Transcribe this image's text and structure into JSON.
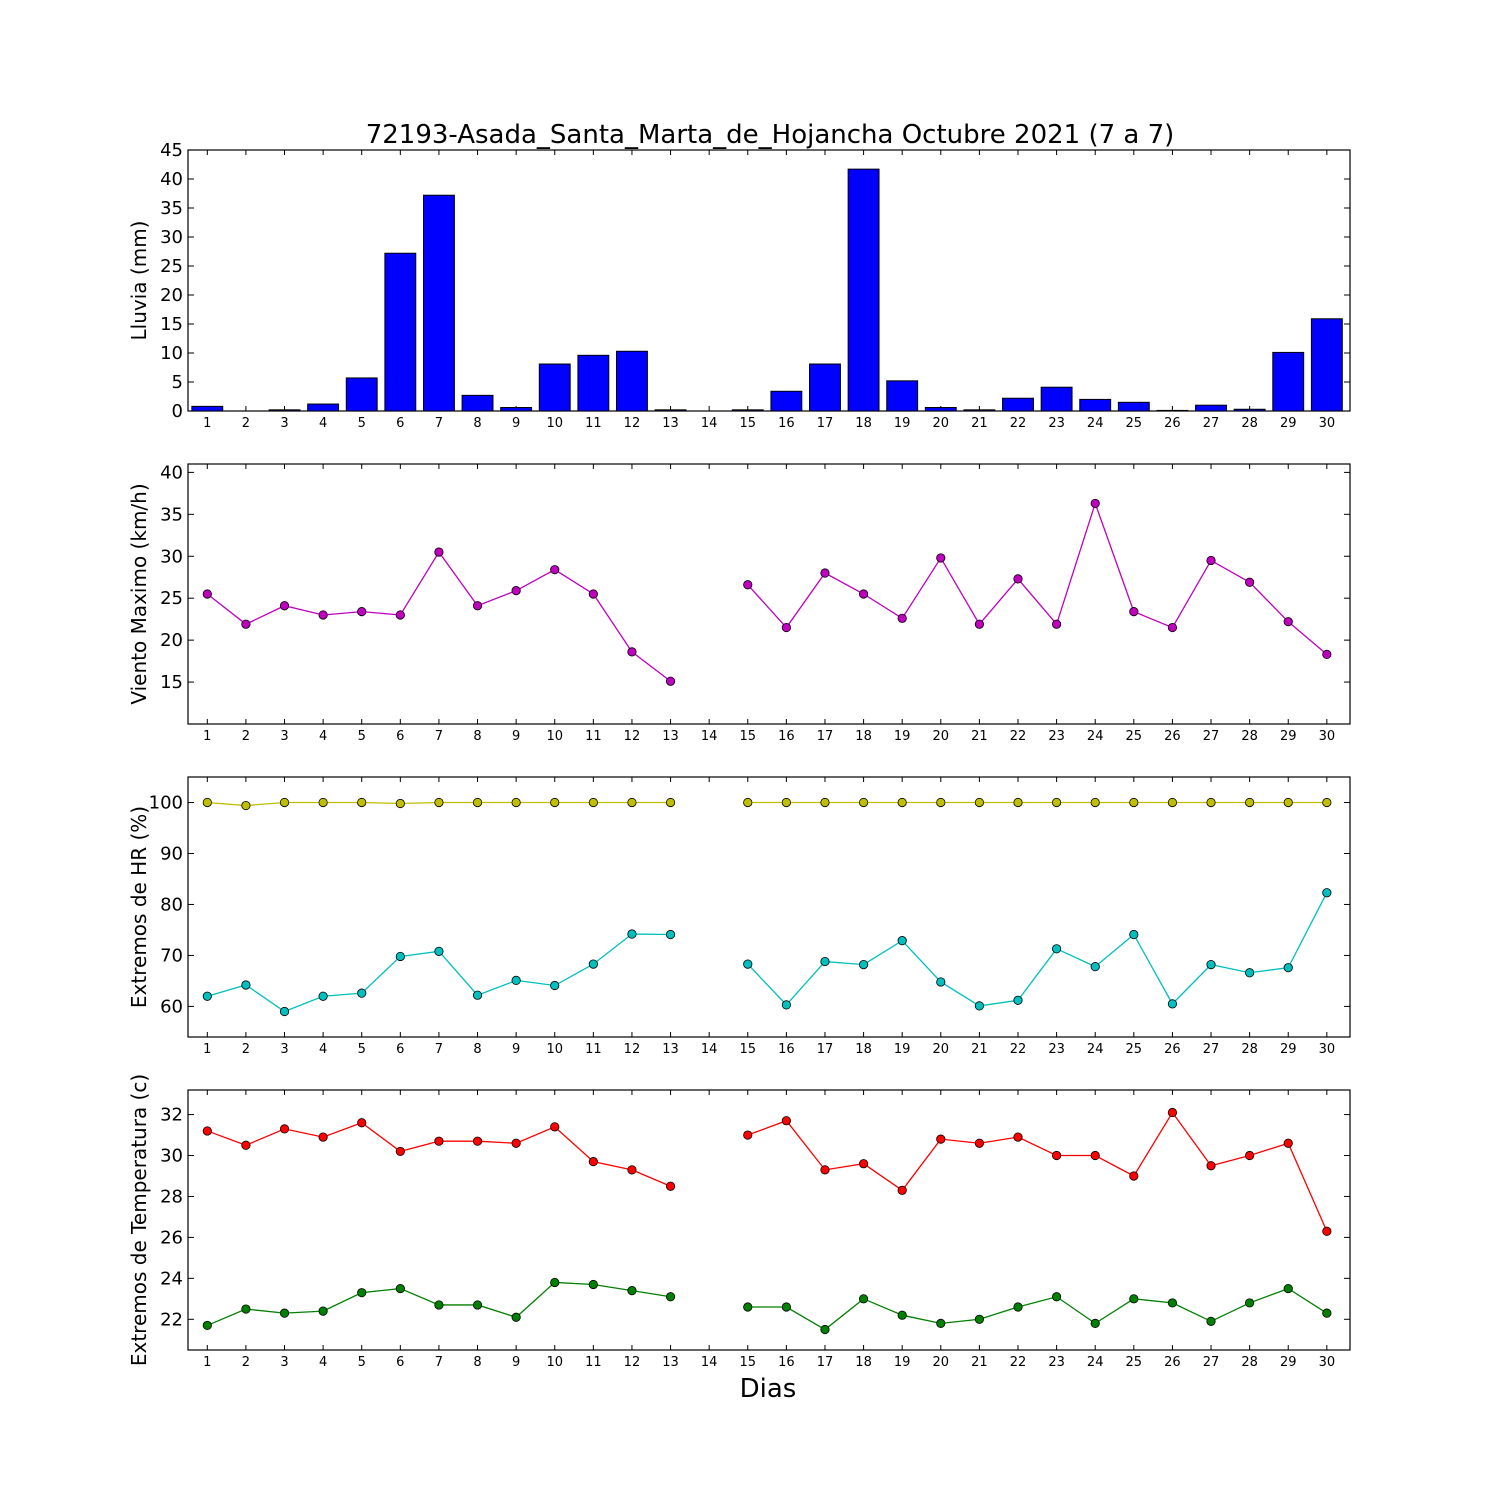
{
  "title": "72193-Asada_Santa_Marta_de_Hojancha Octubre 2021  (7 a 7)",
  "xlabel": "Dias",
  "days": [
    1,
    2,
    3,
    4,
    5,
    6,
    7,
    8,
    9,
    10,
    11,
    12,
    13,
    14,
    15,
    16,
    17,
    18,
    19,
    20,
    21,
    22,
    23,
    24,
    25,
    26,
    27,
    28,
    29,
    30
  ],
  "chart_data": [
    {
      "type": "bar",
      "ylabel": "Lluvia (mm)",
      "ylim": [
        0,
        45
      ],
      "yticks": [
        0,
        5,
        10,
        15,
        20,
        25,
        30,
        35,
        40,
        45
      ],
      "color": "#0000ff",
      "categories": [
        1,
        2,
        3,
        4,
        5,
        6,
        7,
        8,
        9,
        10,
        11,
        12,
        13,
        14,
        15,
        16,
        17,
        18,
        19,
        20,
        21,
        22,
        23,
        24,
        25,
        26,
        27,
        28,
        29,
        30
      ],
      "values": [
        0.8,
        0,
        0.2,
        1.2,
        5.7,
        27.2,
        37.2,
        2.7,
        0.6,
        8.1,
        9.6,
        10.3,
        0.2,
        0,
        0.2,
        3.4,
        8.1,
        41.7,
        5.2,
        0.6,
        0.2,
        2.2,
        4.1,
        2.0,
        1.5,
        0.1,
        1.0,
        0.3,
        10.1,
        15.9
      ]
    },
    {
      "type": "line",
      "ylabel": "Viento Maximo (km/h)",
      "ylim": [
        10,
        41
      ],
      "yticks": [
        15,
        20,
        25,
        30,
        35,
        40
      ],
      "x": [
        1,
        2,
        3,
        4,
        5,
        6,
        7,
        8,
        9,
        10,
        11,
        12,
        13,
        14,
        15,
        16,
        17,
        18,
        19,
        20,
        21,
        22,
        23,
        24,
        25,
        26,
        27,
        28,
        29,
        30
      ],
      "series": [
        {
          "color": "#bf00bf",
          "values": [
            25.5,
            21.9,
            24.1,
            23.0,
            23.4,
            23.0,
            30.5,
            24.1,
            25.9,
            28.4,
            25.5,
            18.6,
            15.1,
            null,
            26.6,
            21.5,
            28.0,
            25.5,
            22.6,
            29.8,
            21.9,
            27.3,
            21.9,
            36.3,
            23.4,
            21.5,
            29.5,
            26.9,
            22.2,
            18.3
          ]
        }
      ]
    },
    {
      "type": "line",
      "ylabel": "Extremos de HR (%)",
      "ylim": [
        54,
        105
      ],
      "yticks": [
        60,
        70,
        80,
        90,
        100
      ],
      "x": [
        1,
        2,
        3,
        4,
        5,
        6,
        7,
        8,
        9,
        10,
        11,
        12,
        13,
        14,
        15,
        16,
        17,
        18,
        19,
        20,
        21,
        22,
        23,
        24,
        25,
        26,
        27,
        28,
        29,
        30
      ],
      "series": [
        {
          "color": "#bfbf00",
          "values": [
            100,
            99.4,
            100,
            100,
            100,
            99.8,
            100,
            100,
            100,
            100,
            100,
            100,
            100,
            null,
            100,
            100,
            100,
            100,
            100,
            100,
            100,
            100,
            100,
            100,
            100,
            100,
            100,
            100,
            100,
            100
          ]
        },
        {
          "color": "#00bfbf",
          "values": [
            62,
            64.2,
            59,
            62,
            62.6,
            69.8,
            70.8,
            62.2,
            65.1,
            64.1,
            68.3,
            74.2,
            74.1,
            null,
            68.3,
            60.3,
            68.8,
            68.2,
            72.9,
            64.8,
            60.1,
            61.2,
            71.3,
            67.8,
            74.1,
            60.5,
            68.2,
            66.6,
            67.6,
            82.3
          ]
        }
      ]
    },
    {
      "type": "line",
      "ylabel": "Extremos de Temperatura (c)",
      "ylim": [
        20.5,
        33.2
      ],
      "yticks": [
        22,
        24,
        26,
        28,
        30,
        32
      ],
      "x": [
        1,
        2,
        3,
        4,
        5,
        6,
        7,
        8,
        9,
        10,
        11,
        12,
        13,
        14,
        15,
        16,
        17,
        18,
        19,
        20,
        21,
        22,
        23,
        24,
        25,
        26,
        27,
        28,
        29,
        30
      ],
      "series": [
        {
          "color": "#ff0000",
          "values": [
            31.2,
            30.5,
            31.3,
            30.9,
            31.6,
            30.2,
            30.7,
            30.7,
            30.6,
            31.4,
            29.7,
            29.3,
            28.5,
            null,
            31.0,
            31.7,
            29.3,
            29.6,
            28.3,
            30.8,
            30.6,
            30.9,
            30.0,
            30.0,
            29.0,
            32.1,
            29.5,
            30.0,
            30.6,
            26.3
          ]
        },
        {
          "color": "#008000",
          "values": [
            21.7,
            22.5,
            22.3,
            22.4,
            23.3,
            23.5,
            22.7,
            22.7,
            22.1,
            23.8,
            23.7,
            23.4,
            23.1,
            null,
            22.6,
            22.6,
            21.5,
            23.0,
            22.2,
            21.8,
            22.0,
            22.6,
            23.1,
            21.8,
            23.0,
            22.8,
            21.9,
            22.8,
            23.5,
            22.3
          ]
        }
      ]
    }
  ]
}
